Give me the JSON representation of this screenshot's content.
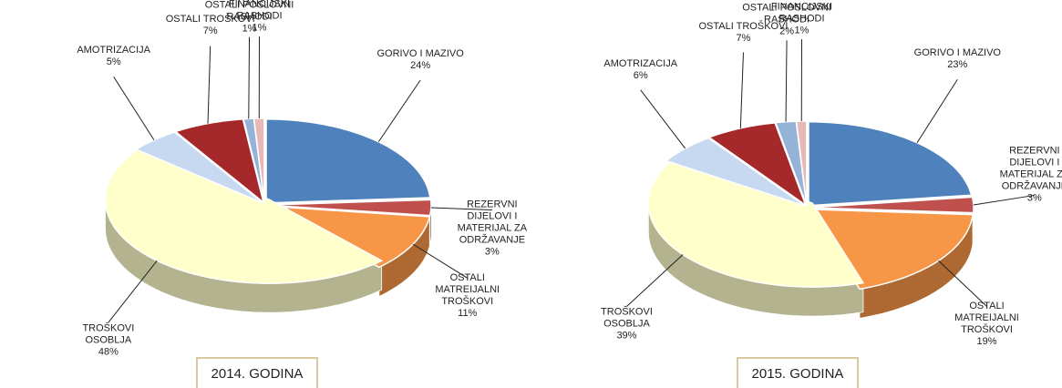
{
  "chart_data": [
    {
      "type": "pie",
      "title": "2014. GODINA",
      "categories": [
        "GORIVO I MAZIVO",
        "REZERVNI DIJELOVI I MATERIJAL ZA ODRŽAVANJE",
        "OSTALI MATREIJALNI TROŠKOVI",
        "TROŠKOVI OSOBLJA",
        "AMOTRIZACIJA",
        "OSTALI TROŠKOVI",
        "OSTALI POSLOVNI RASHODI",
        "FINANCIJSKI RASHODI"
      ],
      "values": [
        24,
        3,
        11,
        48,
        5,
        7,
        1,
        1
      ],
      "value_labels": [
        "24%",
        "3%",
        "11%",
        "48%",
        "5%",
        "7%",
        "1%",
        "1%"
      ],
      "colors": [
        "#4f81bd",
        "#c0504d",
        "#f79646",
        "#ffffcc",
        "#c6d9f1",
        "#a5282a",
        "#95b3d7",
        "#e6b9b8"
      ]
    },
    {
      "type": "pie",
      "title": "2015. GODINA",
      "categories": [
        "GORIVO I MAZIVO",
        "REZERVNI DIJELOVI I MATERIJAL ZA ODRŽAVANJE",
        "OSTALI MATREIJALNI TROŠKOVI",
        "TROŠKOVI OSOBLJA",
        "AMOTRIZACIJA",
        "OSTALI TROŠKOVI",
        "OSTALI POSLOVNI RASHODI",
        "FINANCIJSKI RASHODI"
      ],
      "values": [
        23,
        3,
        19,
        39,
        6,
        7,
        2,
        1
      ],
      "value_labels": [
        "23%",
        "3%",
        "19%",
        "39%",
        "6%",
        "7%",
        "2%",
        "1%"
      ],
      "colors": [
        "#4f81bd",
        "#c0504d",
        "#f79646",
        "#ffffcc",
        "#c6d9f1",
        "#a5282a",
        "#95b3d7",
        "#e6b9b8"
      ]
    }
  ]
}
